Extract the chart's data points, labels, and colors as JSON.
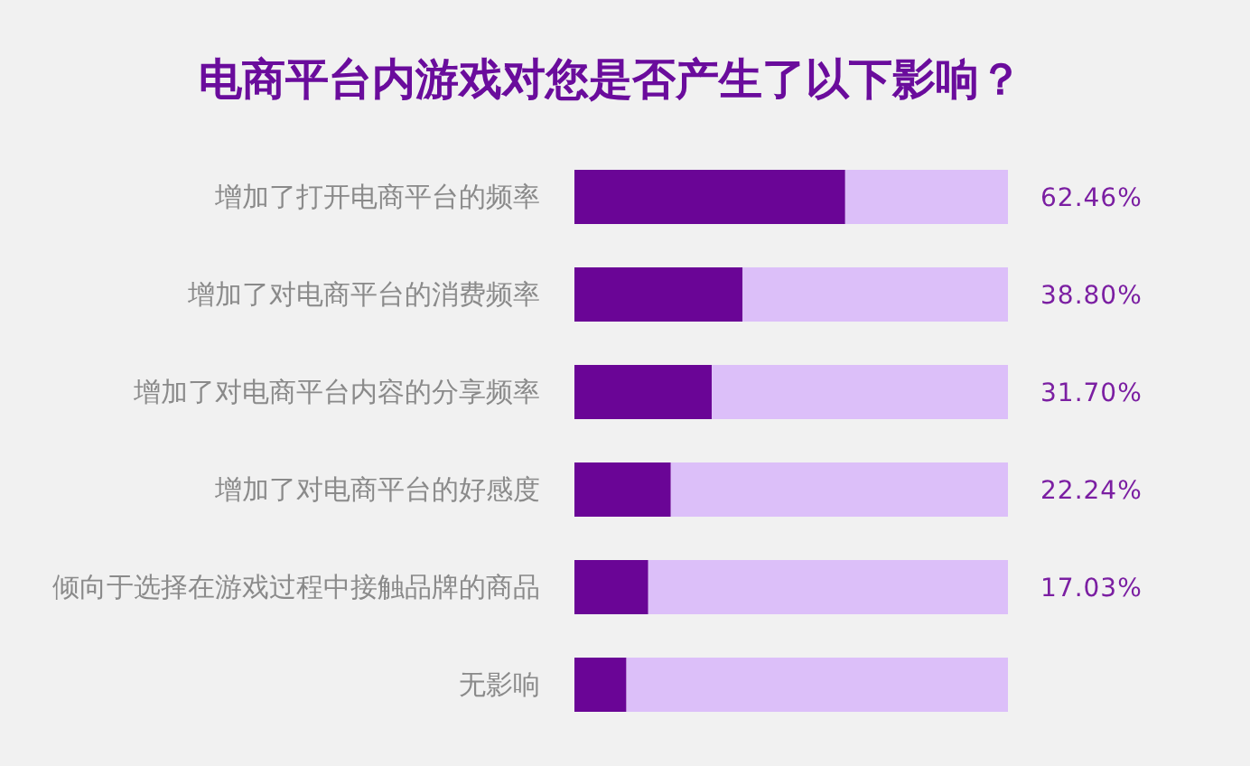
{
  "chart_data": {
    "type": "bar",
    "orientation": "horizontal",
    "stacked": true,
    "title": "电商平台内游戏对您是否产生了以下影响？",
    "categories": [
      "增加了打开电商平台的频率",
      "增加了对电商平台的消费频率",
      "增加了对电商平台内容的分享频率",
      "增加了对电商平台的好感度",
      "倾向于选择在游戏过程中接触品牌的商品",
      "无影响"
    ],
    "series": [
      {
        "color": "#6a0596",
        "values": [
          62.46,
          38.8,
          31.7,
          22.24,
          17.03,
          12
        ],
        "value_labels": [
          "62.46%",
          "38.80%",
          "31.70%",
          "22.24%",
          "17.03%",
          null
        ]
      },
      {
        "color": "#dcbff9",
        "values": [
          37.54,
          61.2,
          68.3,
          77.76,
          82.97,
          88
        ]
      }
    ]
  }
}
